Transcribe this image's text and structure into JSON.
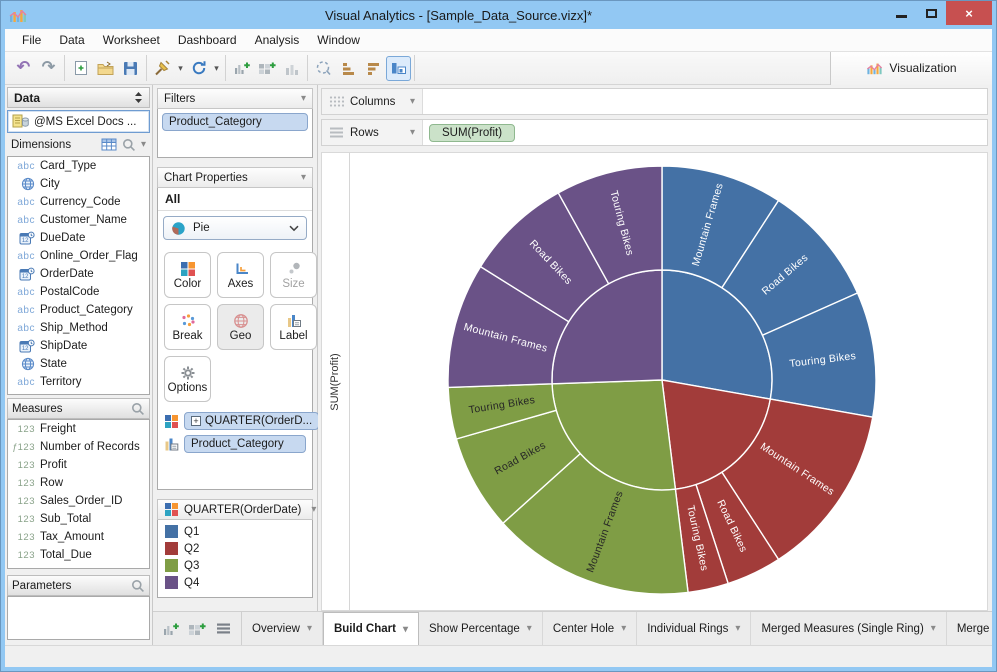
{
  "window": {
    "title": "Visual Analytics - [Sample_Data_Source.vizx]*"
  },
  "menu": {
    "items": [
      "File",
      "Data",
      "Worksheet",
      "Dashboard",
      "Analysis",
      "Window"
    ]
  },
  "toolbar": {
    "groups": [
      [
        {
          "icon": "undo-icon"
        },
        {
          "icon": "redo-icon"
        }
      ],
      [
        {
          "icon": "new-document-icon"
        },
        {
          "icon": "open-file-icon"
        },
        {
          "icon": "save-icon"
        }
      ],
      [
        {
          "icon": "data-connection-icon",
          "dropdown": true
        },
        {
          "icon": "refresh-icon",
          "dropdown": true
        }
      ],
      [
        {
          "icon": "new-worksheet-icon"
        },
        {
          "icon": "new-dashboard-icon"
        },
        {
          "icon": "bar-chart-gray-icon"
        }
      ],
      [
        {
          "icon": "lasso-select-icon"
        },
        {
          "icon": "sort-bars-icon"
        },
        {
          "icon": "sort-bars2-icon"
        },
        {
          "icon": "show-visualization-icon",
          "selected": true
        }
      ]
    ],
    "visualization": {
      "label": "Visualization",
      "icon": "visualization-icon"
    }
  },
  "data_panel": {
    "title": "Data",
    "source": {
      "label": "@MS Excel Docs ...",
      "icon": "excel-datasource-icon"
    },
    "dimensions": {
      "label": "Dimensions",
      "items": [
        {
          "label": "Card_Type",
          "icon": "abc-icon"
        },
        {
          "label": "City",
          "icon": "geo-icon"
        },
        {
          "label": "Currency_Code",
          "icon": "abc-icon"
        },
        {
          "label": "Customer_Name",
          "icon": "abc-icon"
        },
        {
          "label": "DueDate",
          "icon": "date-icon"
        },
        {
          "label": "Online_Order_Flag",
          "icon": "abc-icon"
        },
        {
          "label": "OrderDate",
          "icon": "date-icon"
        },
        {
          "label": "PostalCode",
          "icon": "abc-icon"
        },
        {
          "label": "Product_Category",
          "icon": "abc-icon"
        },
        {
          "label": "Ship_Method",
          "icon": "abc-icon"
        },
        {
          "label": "ShipDate",
          "icon": "date-icon"
        },
        {
          "label": "State",
          "icon": "geo-icon"
        },
        {
          "label": "Territory",
          "icon": "abc-icon"
        }
      ]
    },
    "measures": {
      "label": "Measures",
      "items": [
        {
          "label": "Freight",
          "icon": "123-icon"
        },
        {
          "label": "Number of Records",
          "icon": "f123-icon"
        },
        {
          "label": "Profit",
          "icon": "123-icon"
        },
        {
          "label": "Row",
          "icon": "123-icon"
        },
        {
          "label": "Sales_Order_ID",
          "icon": "123-icon"
        },
        {
          "label": "Sub_Total",
          "icon": "123-icon"
        },
        {
          "label": "Tax_Amount",
          "icon": "123-icon"
        },
        {
          "label": "Total_Due",
          "icon": "123-icon"
        }
      ]
    },
    "parameters": {
      "label": "Parameters"
    }
  },
  "filters": {
    "title": "Filters",
    "items": [
      "Product_Category"
    ]
  },
  "chart_properties": {
    "title": "Chart Properties",
    "scope": "All",
    "type_selector": {
      "value": "Pie",
      "icon": "pie-icon"
    },
    "buttons": [
      {
        "label": "Color",
        "icon": "color-icon"
      },
      {
        "label": "Axes",
        "icon": "axes-icon"
      },
      {
        "label": "Size",
        "icon": "size-icon",
        "disabled": true
      },
      {
        "label": "Break",
        "icon": "break-icon"
      },
      {
        "label": "Geo",
        "icon": "geo-globe-icon",
        "pressed": true
      },
      {
        "label": "Label",
        "icon": "label-icon"
      },
      {
        "label": "Options",
        "icon": "gear-icon"
      }
    ],
    "shelves": [
      {
        "icon": "color-shelf-icon",
        "label": "QUARTER(OrderD...",
        "expandable": true
      },
      {
        "icon": "label-shelf-icon",
        "label": "Product_Category",
        "expandable": false
      }
    ]
  },
  "legend": {
    "title": "QUARTER(OrderDate)",
    "items": [
      {
        "label": "Q1",
        "color": "#4471a5"
      },
      {
        "label": "Q2",
        "color": "#a23c3a"
      },
      {
        "label": "Q3",
        "color": "#7f9d45"
      },
      {
        "label": "Q4",
        "color": "#6a5287"
      }
    ]
  },
  "shelf_bar": {
    "columns": {
      "label": "Columns",
      "pills": []
    },
    "rows": {
      "label": "Rows",
      "pills": [
        "SUM(Profit)"
      ]
    }
  },
  "chart_data": {
    "type": "sunburst",
    "measure": "SUM(Profit)",
    "axis_label": "SUM(Profit)",
    "inner_ring_field": "QUARTER(OrderDate)",
    "outer_ring_field": "Product_Category",
    "slices": [
      {
        "quarter": "Q1",
        "color": "#4471a5",
        "label_color": "#ffffff",
        "start_deg": 0,
        "end_deg": 100,
        "products": [
          {
            "name": "Mountain Frames",
            "start_deg": 0,
            "end_deg": 33
          },
          {
            "name": "Road Bikes",
            "start_deg": 33,
            "end_deg": 66
          },
          {
            "name": "Touring Bikes",
            "start_deg": 66,
            "end_deg": 100
          }
        ]
      },
      {
        "quarter": "Q2",
        "color": "#a23c3a",
        "label_color": "#ffffff",
        "start_deg": 100,
        "end_deg": 173,
        "products": [
          {
            "name": "Mountain Frames",
            "start_deg": 100,
            "end_deg": 147
          },
          {
            "name": "Road Bikes",
            "start_deg": 147,
            "end_deg": 162
          },
          {
            "name": "Touring Bikes",
            "start_deg": 162,
            "end_deg": 173
          }
        ]
      },
      {
        "quarter": "Q3",
        "color": "#7f9d45",
        "label_color": "#262626",
        "start_deg": 173,
        "end_deg": 268,
        "products": [
          {
            "name": "Mountain Frames",
            "start_deg": 173,
            "end_deg": 228
          },
          {
            "name": "Road Bikes",
            "start_deg": 228,
            "end_deg": 254
          },
          {
            "name": "Touring Bikes",
            "start_deg": 254,
            "end_deg": 268
          }
        ]
      },
      {
        "quarter": "Q4",
        "color": "#6a5287",
        "label_color": "#ffffff",
        "start_deg": 268,
        "end_deg": 360,
        "products": [
          {
            "name": "Mountain Frames",
            "start_deg": 268,
            "end_deg": 302
          },
          {
            "name": "Road Bikes",
            "start_deg": 302,
            "end_deg": 331
          },
          {
            "name": "Touring Bikes",
            "start_deg": 331,
            "end_deg": 360
          }
        ]
      }
    ]
  },
  "tab_bar": {
    "icons": [
      "new-worksheet-icon",
      "new-dashboard-icon",
      "worksheet-list-icon"
    ],
    "tabs": [
      {
        "label": "Overview"
      },
      {
        "label": "Build Chart",
        "active": true
      },
      {
        "label": "Show Percentage"
      },
      {
        "label": "Center Hole"
      },
      {
        "label": "Individual Rings"
      },
      {
        "label": "Merged Measures (Single Ring)"
      },
      {
        "label": "Merge",
        "truncated": true
      }
    ]
  }
}
